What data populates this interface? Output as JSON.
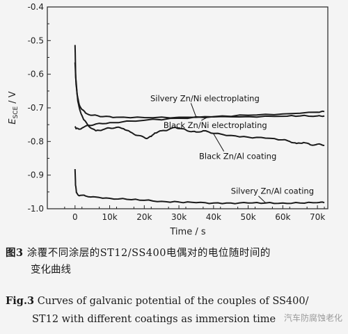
{
  "chart_data": {
    "type": "line",
    "xlabel": "Time / s",
    "ylabel_main": "E",
    "ylabel_sub": "SCE",
    "ylabel_unit": " / V",
    "xlim": [
      -8000,
      73000
    ],
    "ylim": [
      -1.0,
      -0.4
    ],
    "x_ticks": [
      0,
      10000,
      20000,
      30000,
      40000,
      50000,
      60000,
      70000
    ],
    "x_tick_labels": [
      "0",
      "10k",
      "20k",
      "30k",
      "40k",
      "50k",
      "60k",
      "70k"
    ],
    "y_ticks": [
      -1.0,
      -0.9,
      -0.8,
      -0.7,
      -0.6,
      -0.5,
      -0.4
    ],
    "y_tick_labels": [
      "-1.0",
      "-0.9",
      "-0.8",
      "-0.7",
      "-0.6",
      "-0.5",
      "-0.4"
    ],
    "grid": false,
    "series": [
      {
        "name": "Silvery Zn/Ni electroplating",
        "x": [
          0,
          200,
          600,
          1200,
          2000,
          3000,
          5000,
          8000,
          12000,
          20000,
          30000,
          40000,
          50000,
          60000,
          65000,
          70000,
          72000
        ],
        "y": [
          -0.513,
          -0.61,
          -0.66,
          -0.69,
          -0.705,
          -0.715,
          -0.722,
          -0.726,
          -0.728,
          -0.729,
          -0.728,
          -0.727,
          -0.726,
          -0.725,
          -0.724,
          -0.724,
          -0.724
        ]
      },
      {
        "name": "Black Zn/Ni electroplating",
        "x": [
          0,
          300,
          1000,
          2000,
          4000,
          6000,
          10000,
          20000,
          30000,
          40000,
          50000,
          60000,
          70000,
          72000
        ],
        "y": [
          -0.755,
          -0.762,
          -0.763,
          -0.76,
          -0.752,
          -0.748,
          -0.744,
          -0.737,
          -0.731,
          -0.726,
          -0.722,
          -0.718,
          -0.713,
          -0.711
        ]
      },
      {
        "name": "Black Zn/Al coating",
        "x": [
          0,
          300,
          800,
          1500,
          2500,
          4000,
          6000,
          8000,
          10000,
          12000,
          14000,
          16000,
          18000,
          20000,
          21000,
          22000,
          23000,
          25000,
          27000,
          29000,
          31000,
          33000,
          35000,
          37000,
          40000,
          45000,
          50000,
          55000,
          60000,
          62000,
          64000,
          66000,
          68000,
          70000,
          72000
        ],
        "y": [
          -0.565,
          -0.63,
          -0.68,
          -0.71,
          -0.735,
          -0.755,
          -0.768,
          -0.765,
          -0.76,
          -0.758,
          -0.762,
          -0.772,
          -0.782,
          -0.788,
          -0.79,
          -0.785,
          -0.775,
          -0.768,
          -0.765,
          -0.758,
          -0.762,
          -0.77,
          -0.772,
          -0.768,
          -0.776,
          -0.782,
          -0.787,
          -0.79,
          -0.795,
          -0.8,
          -0.806,
          -0.803,
          -0.81,
          -0.808,
          -0.812
        ]
      },
      {
        "name": "Silvery Zn/Al coating",
        "x": [
          0,
          150,
          400,
          800,
          1500,
          3000,
          6000,
          10000,
          15000,
          20000,
          25000,
          30000,
          35000,
          40000,
          45000,
          50000,
          55000,
          60000,
          65000,
          70000,
          72000
        ],
        "y": [
          -0.882,
          -0.93,
          -0.952,
          -0.958,
          -0.96,
          -0.962,
          -0.965,
          -0.969,
          -0.972,
          -0.975,
          -0.978,
          -0.98,
          -0.982,
          -0.983,
          -0.983,
          -0.983,
          -0.983,
          -0.983,
          -0.983,
          -0.982,
          -0.982
        ]
      }
    ],
    "annotations": [
      {
        "text": "Silvery Zn/Ni electroplating",
        "x": 37500,
        "y": -0.68,
        "pointer_x": 35000,
        "pointer_y": -0.728
      },
      {
        "text": "Black Zn/Ni electroplating",
        "x": 40500,
        "y": -0.76,
        "pointer_x": 38000,
        "pointer_y": -0.729
      },
      {
        "text": "Black Zn/Al coating",
        "x": 47000,
        "y": -0.852,
        "pointer_x": 40000,
        "pointer_y": -0.777
      },
      {
        "text": "Silvery Zn/Al coating",
        "x": 57000,
        "y": -0.956,
        "pointer_x": 55000,
        "pointer_y": -0.982
      }
    ]
  },
  "captions": {
    "cn_label": "图3",
    "cn_line1": "涂覆不同涂层的ST12/SS400电偶对的电位随时间的",
    "cn_line2": "变化曲线",
    "en_label": "Fig.3",
    "en_line1": "Curves of galvanic potential of the couples of SS400/",
    "en_line2": "ST12 with different coatings as immersion time"
  },
  "watermark": "汽车防腐蚀老化",
  "colors": {
    "line": "#1a1a1a",
    "axis": "#222222",
    "background": "#f4f4f4"
  }
}
